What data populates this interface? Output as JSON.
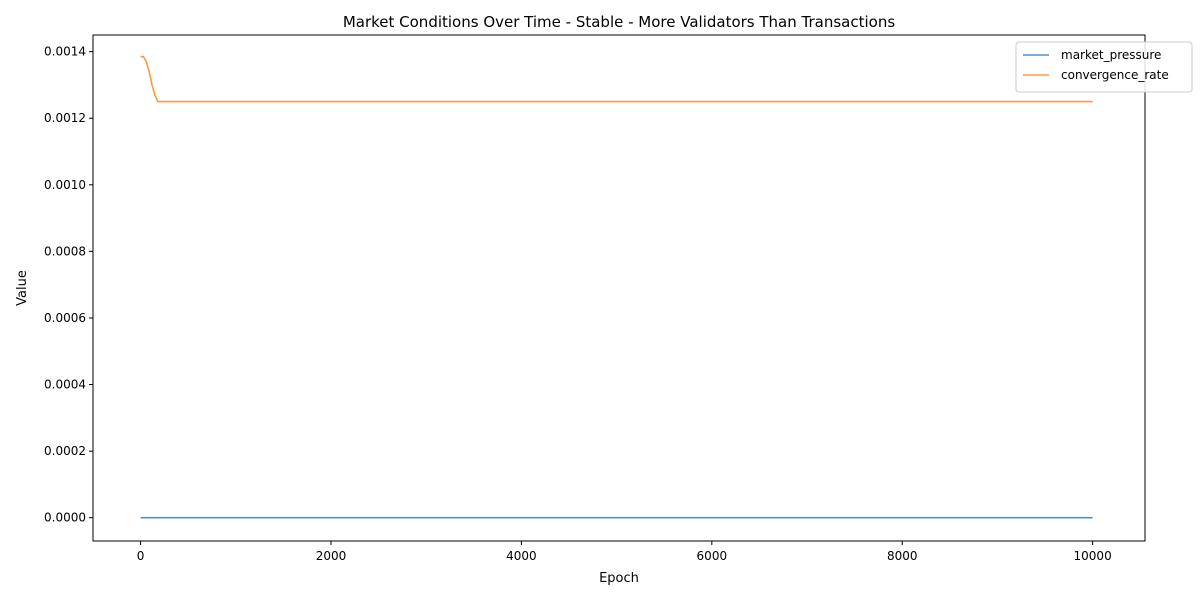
{
  "chart_data": {
    "type": "line",
    "title": "Market Conditions Over Time - Stable - More Validators Than Transactions",
    "xlabel": "Epoch",
    "ylabel": "Value",
    "xlim": [
      -500,
      10550
    ],
    "ylim": [
      -7e-05,
      0.00145
    ],
    "xticks": [
      0,
      2000,
      4000,
      6000,
      8000,
      10000
    ],
    "xtick_labels": [
      "0",
      "2000",
      "4000",
      "6000",
      "8000",
      "10000"
    ],
    "yticks": [
      0,
      0.0002,
      0.0004,
      0.0006,
      0.0008,
      0.001,
      0.0012,
      0.0014
    ],
    "ytick_labels": [
      "0.0000",
      "0.0002",
      "0.0004",
      "0.0006",
      "0.0008",
      "0.0010",
      "0.0012",
      "0.0014"
    ],
    "grid": false,
    "legend_position": "top-right",
    "series": [
      {
        "name": "market_pressure",
        "color": "#1f77b4",
        "x": [
          0,
          10000
        ],
        "y": [
          0,
          0
        ]
      },
      {
        "name": "convergence_rate",
        "color": "#ff7f0e",
        "x": [
          0,
          30,
          60,
          90,
          120,
          150,
          180,
          200,
          10000
        ],
        "y": [
          0.001385,
          0.001385,
          0.00137,
          0.00134,
          0.0013,
          0.00127,
          0.00125,
          0.00125,
          0.00125
        ]
      }
    ]
  }
}
